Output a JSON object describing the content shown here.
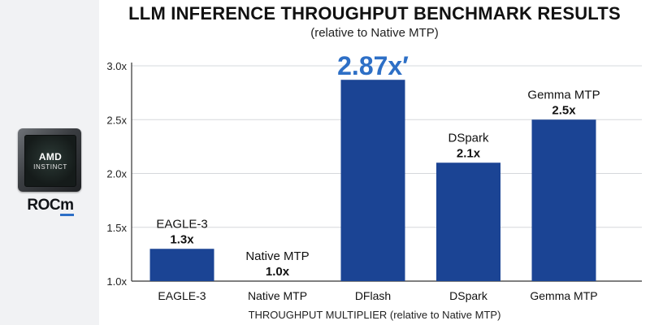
{
  "title": "LLM INFERENCE THROUGHPUT BENCHMARK RESULTS",
  "subtitle": "(relative to Native MTP)",
  "logo": {
    "chip_brand": "AMD",
    "chip_sub": "INSTINCT",
    "rocm_prefix": "ROC",
    "rocm_suffix": "m"
  },
  "colors": {
    "bar": "#1b4494",
    "highlight": "#2d6fc6",
    "grid": "#d6d8dc",
    "axis": "#333333"
  },
  "chart_data": {
    "type": "bar",
    "title": "LLM INFERENCE THROUGHPUT BENCHMARK RESULTS",
    "subtitle": "(relative to Native MTP)",
    "xlabel": "THROUGHPUT MULTIPLIER (relative to Native MTP)",
    "ylabel": "",
    "ylim": [
      1.0,
      3.0
    ],
    "yticks": [
      1.0,
      1.5,
      2.0,
      2.5,
      3.0
    ],
    "ytick_labels": [
      "1.0x",
      "1.5x",
      "2.0x",
      "2.5x",
      "3.0x"
    ],
    "grid": true,
    "categories": [
      "EAGLE-3",
      "Native MTP",
      "DFlash",
      "DSpark",
      "Gemma MTP"
    ],
    "values": [
      1.3,
      1.0,
      2.87,
      2.1,
      2.5
    ],
    "bar_labels": [
      {
        "name": "EAGLE-3",
        "value": "1.3x"
      },
      {
        "name": "Native MTP",
        "value": "1.0x"
      },
      {
        "name": "",
        "value": "2.87x′"
      },
      {
        "name": "DSpark",
        "value": "2.1x"
      },
      {
        "name": "Gemma MTP",
        "value": "2.5x"
      }
    ],
    "highlight_index": 2
  }
}
